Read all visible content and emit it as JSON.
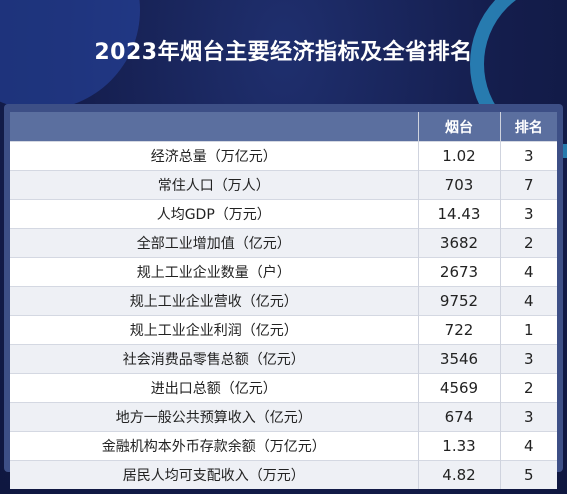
{
  "header": {
    "title": "2023年烟台主要经济指标及全省排名"
  },
  "table": {
    "columns": [
      "烟台",
      "排名"
    ],
    "rows": [
      [
        "经济总量（万亿元）",
        "1.02",
        "3"
      ],
      [
        "常住人口（万人）",
        "703",
        "7"
      ],
      [
        "人均GDP（万元）",
        "14.43",
        "3"
      ],
      [
        "全部工业增加值（亿元）",
        "3682",
        "2"
      ],
      [
        "规上工业企业数量（户）",
        "2673",
        "4"
      ],
      [
        "规上工业企业营收（亿元）",
        "9752",
        "4"
      ],
      [
        "规上工业企业利润（亿元）",
        "722",
        "1"
      ],
      [
        "社会消费品零售总额（亿元）",
        "3546",
        "3"
      ],
      [
        "进出口总额（亿元）",
        "4569",
        "2"
      ],
      [
        "地方一般公共预算收入（亿元）",
        "674",
        "3"
      ],
      [
        "金融机构本外币存款余额（万亿元）",
        "1.33",
        "4"
      ],
      [
        "居民人均可支配收入（万元）",
        "4.82",
        "5"
      ]
    ]
  }
}
